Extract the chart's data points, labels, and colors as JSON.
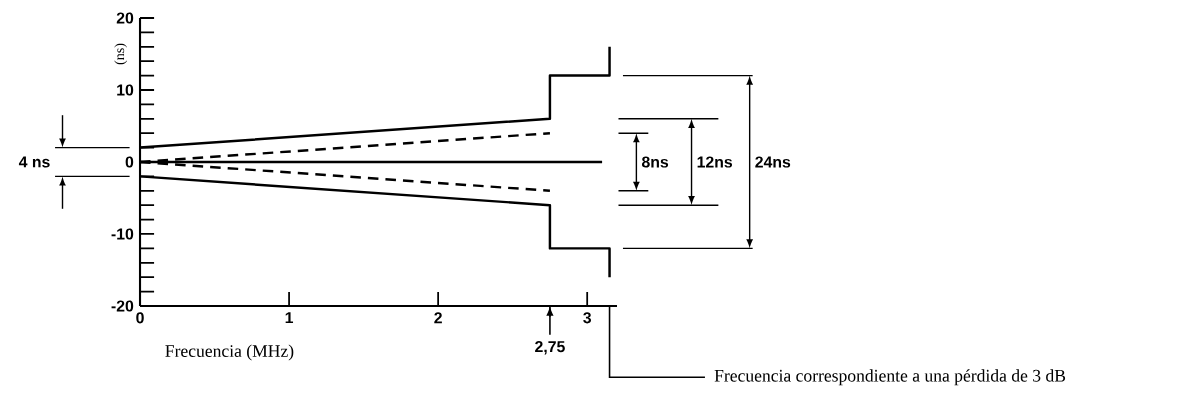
{
  "chart_data": {
    "type": "line",
    "xlabel": "Frecuencia (MHz)",
    "ylabel": "(ns)",
    "xlim": [
      0,
      3.2
    ],
    "ylim": [
      -20,
      20
    ],
    "xticks": [
      0,
      1,
      2,
      3
    ],
    "yticks": [
      -20,
      -10,
      0,
      10,
      20
    ],
    "grid": false,
    "marker": "none",
    "series": [
      {
        "color": "#000000",
        "line_style": "solid",
        "x": [
          0,
          2.75,
          2.75,
          3.15,
          3.15
        ],
        "values": [
          2,
          6,
          12,
          12,
          16
        ]
      },
      {
        "color": "#000000",
        "line_style": "solid",
        "x": [
          0,
          2.75,
          2.75,
          3.15,
          3.15
        ],
        "values": [
          -2,
          -6,
          -12,
          -12,
          -16
        ]
      },
      {
        "color": "#000000",
        "line_style": "dashed",
        "x": [
          0,
          2.75
        ],
        "values": [
          0,
          4
        ]
      },
      {
        "color": "#000000",
        "line_style": "dashed",
        "x": [
          0,
          2.75
        ],
        "values": [
          0,
          -4
        ]
      },
      {
        "color": "#000000",
        "line_style": "solid",
        "x": [
          0,
          3.1
        ],
        "values": [
          0,
          0
        ]
      }
    ],
    "annotations": [
      "4 ns",
      "8ns",
      "12ns",
      "24ns",
      "Frecuencia correspondiente a una pérdida de 3 dB"
    ],
    "ref_lines": [
      {
        "axis": "x",
        "value": 2.75,
        "label": "2,75"
      }
    ]
  }
}
